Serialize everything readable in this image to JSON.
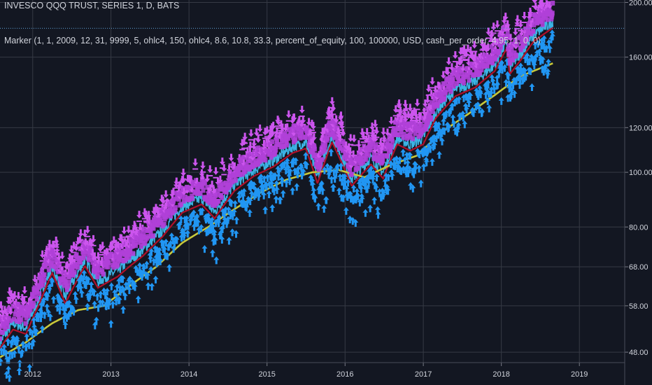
{
  "header": {
    "symbol_title": "INVESCO QQQ TRUST, SERIES 1, D, BATS",
    "study_line": "Marker (1, 1, 2009, 12, 31, 9999, 5, ohlc4, 150, ohlc4, 8.6, 10.8, 33.3, percent_of_equity, 100, 100000, USD, cash_per_order, 4.95, 1, 0, 0)"
  },
  "colors": {
    "background": "#131722",
    "grid": "#363a45",
    "price_line": "#3bb3e4",
    "sell_marker": "#cc55ee",
    "sell_fill": "#b040d8",
    "buy_marker": "#2196f3",
    "moving_average": "#c8c83a",
    "dark_red_line": "#b0102a",
    "axis_text": "#d1d4dc",
    "last_price_line": "#5d9fd4"
  },
  "chart_data": {
    "type": "line",
    "title": "",
    "xlabel": "",
    "ylabel": "",
    "y_scale": "log",
    "ylim": [
      46,
      202
    ],
    "xlim": [
      "2011-08-01",
      "2019-08-01"
    ],
    "y_ticks": [
      48,
      58,
      68,
      80,
      100,
      120,
      160,
      200
    ],
    "y_tick_labels": [
      "48.00",
      "58.00",
      "68.00",
      "80.00",
      "100.00",
      "120.00",
      "160.00",
      "200.00"
    ],
    "x_ticks": [
      "2012-01-01",
      "2013-01-01",
      "2014-01-01",
      "2015-01-01",
      "2016-01-01",
      "2017-01-01",
      "2018-01-01",
      "2019-01-01"
    ],
    "x_tick_labels": [
      "2012",
      "2013",
      "2014",
      "2015",
      "2016",
      "2017",
      "2018",
      "2019"
    ],
    "grid": true,
    "last_price_marker_y": 180,
    "series": [
      {
        "kind": "price",
        "x": [
          "2011-08-01",
          "2011-10-01",
          "2011-12-01",
          "2012-02-01",
          "2012-04-01",
          "2012-06-01",
          "2012-09-01",
          "2012-11-01",
          "2013-02-01",
          "2013-04-01",
          "2013-06-01",
          "2013-09-01",
          "2013-12-01",
          "2014-03-01",
          "2014-05-01",
          "2014-08-01",
          "2014-11-01",
          "2015-02-01",
          "2015-05-01",
          "2015-07-01",
          "2015-08-25",
          "2015-11-01",
          "2016-02-01",
          "2016-05-01",
          "2016-06-27",
          "2016-09-01",
          "2016-11-01",
          "2017-01-01",
          "2017-03-01",
          "2017-06-01",
          "2017-09-01",
          "2017-12-01",
          "2018-01-26",
          "2018-02-09",
          "2018-04-01",
          "2018-06-01",
          "2018-08-30"
        ],
        "y": [
          50,
          54,
          53,
          60,
          68,
          60,
          70,
          64,
          67,
          70,
          73,
          79,
          87,
          90,
          85,
          95,
          101,
          105,
          111,
          113,
          98,
          116,
          97,
          106,
          100,
          115,
          112,
          115,
          128,
          140,
          145,
          155,
          170,
          153,
          162,
          175,
          185
        ]
      },
      {
        "kind": "moving_average",
        "x": [
          "2011-08-01",
          "2011-12-01",
          "2012-04-01",
          "2012-08-01",
          "2012-12-01",
          "2013-04-01",
          "2013-08-01",
          "2013-12-01",
          "2014-04-01",
          "2014-08-01",
          "2014-12-01",
          "2015-04-01",
          "2015-08-01",
          "2015-12-01",
          "2016-04-01",
          "2016-08-01",
          "2016-12-01",
          "2017-04-01",
          "2017-08-01",
          "2017-12-01",
          "2018-04-01",
          "2018-08-30"
        ],
        "y": [
          47,
          50,
          54,
          57,
          58,
          63,
          68,
          75,
          80,
          86,
          92,
          97,
          100,
          101,
          98,
          103,
          107,
          118,
          127,
          137,
          148,
          156
        ]
      }
    ]
  }
}
